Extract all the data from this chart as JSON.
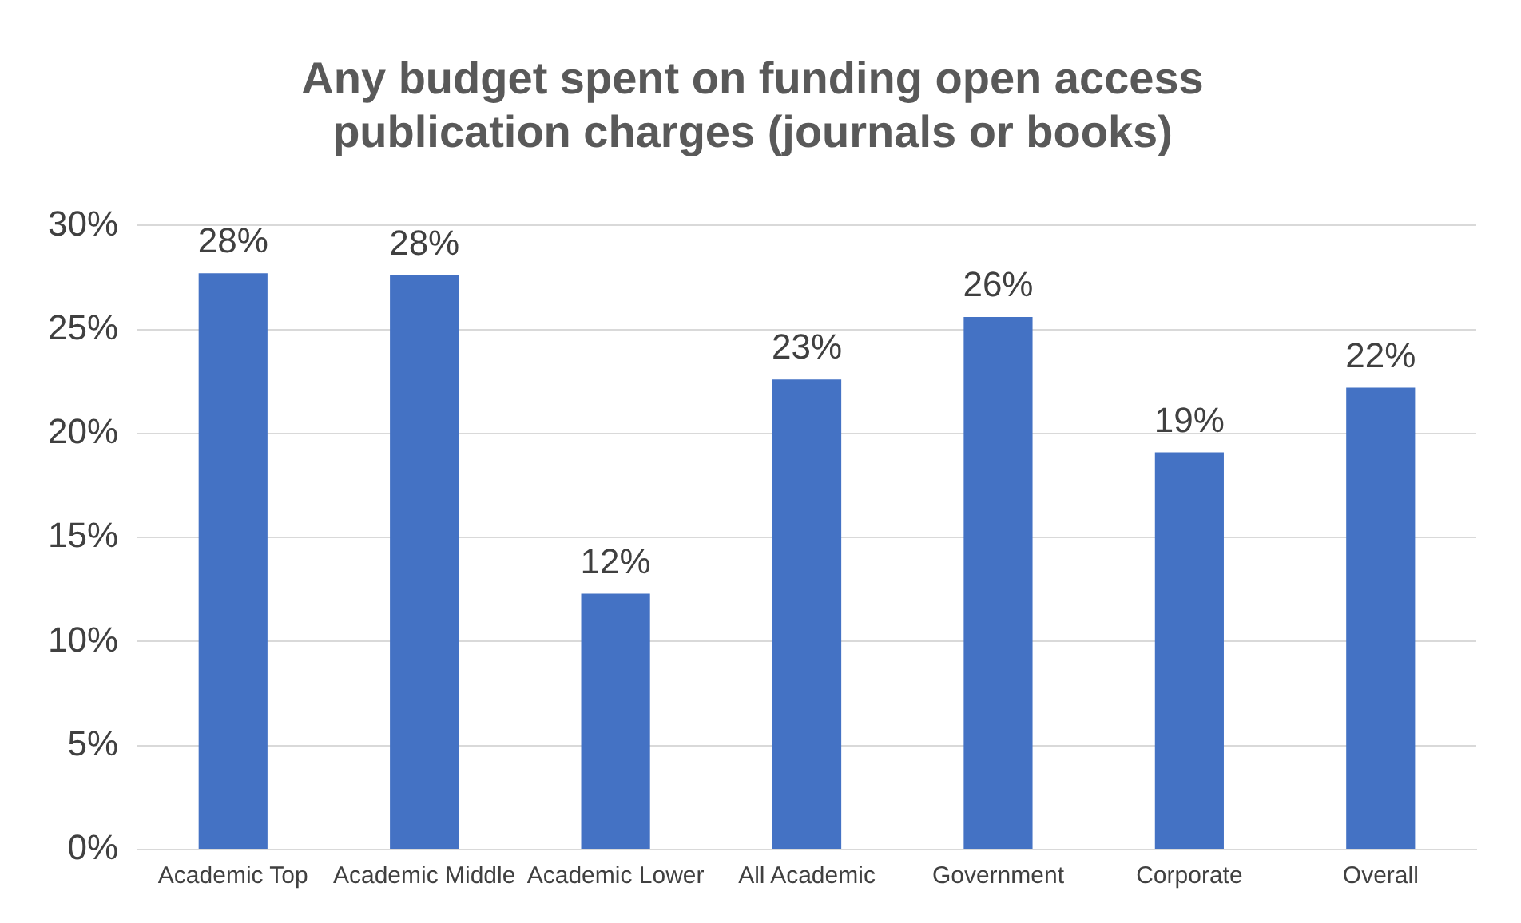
{
  "chart_data": {
    "type": "bar",
    "title": "Any budget spent on funding open access publication charges (journals or books)",
    "categories": [
      "Academic Top",
      "Academic Middle",
      "Academic Lower",
      "All Academic",
      "Government",
      "Corporate",
      "Overall"
    ],
    "values": [
      27.7,
      27.6,
      12.3,
      22.6,
      25.6,
      19.1,
      22.2
    ],
    "value_labels": [
      "28%",
      "28%",
      "12%",
      "23%",
      "26%",
      "19%",
      "22%"
    ],
    "color": "#4472c4",
    "ylim": [
      0,
      30
    ],
    "yticks": [
      {
        "value": 0,
        "label": "0%"
      },
      {
        "value": 5,
        "label": "5%"
      },
      {
        "value": 10,
        "label": "10%"
      },
      {
        "value": 15,
        "label": "15%"
      },
      {
        "value": 20,
        "label": "20%"
      },
      {
        "value": 25,
        "label": "25%"
      },
      {
        "value": 30,
        "label": "30%"
      }
    ],
    "grid": "y"
  }
}
